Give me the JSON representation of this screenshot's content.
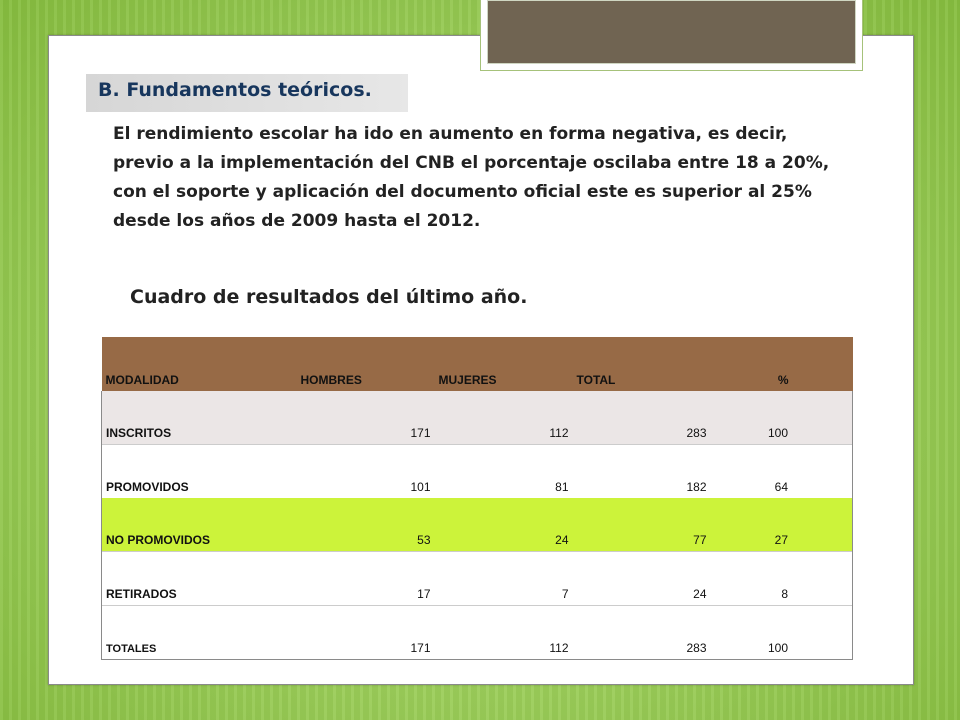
{
  "section": {
    "title": "B. Fundamentos teóricos."
  },
  "body_text": "El rendimiento escolar ha ido en aumento en forma negativa, es decir, previo a la implementación del CNB el porcentaje oscilaba entre 18 a 20%, con el soporte y aplicación del documento oficial este es superior al 25% desde los años de 2009 hasta el 2012.",
  "caption": "Cuadro de resultados del último año.",
  "table": {
    "headers": [
      "MODALIDAD",
      "HOMBRES",
      "MUJERES",
      "TOTAL",
      "%"
    ],
    "rows": [
      {
        "label": "INSCRITOS",
        "hombres": "171",
        "mujeres": "112",
        "total": "283",
        "pct": "100"
      },
      {
        "label": "PROMOVIDOS",
        "hombres": "101",
        "mujeres": "81",
        "total": "182",
        "pct": "64"
      },
      {
        "label": "NO PROMOVIDOS",
        "hombres": "53",
        "mujeres": "24",
        "total": "77",
        "pct": "27"
      },
      {
        "label": "RETIRADOS",
        "hombres": "17",
        "mujeres": "7",
        "total": "24",
        "pct": "8"
      },
      {
        "label": "TOTALES",
        "hombres": "171",
        "mujeres": "112",
        "total": "283",
        "pct": "100"
      }
    ]
  },
  "colors": {
    "header_bg": "#976a46",
    "highlight_row": "#ccf33a",
    "title_text": "#17365d",
    "background_green": "#9fd05e"
  }
}
